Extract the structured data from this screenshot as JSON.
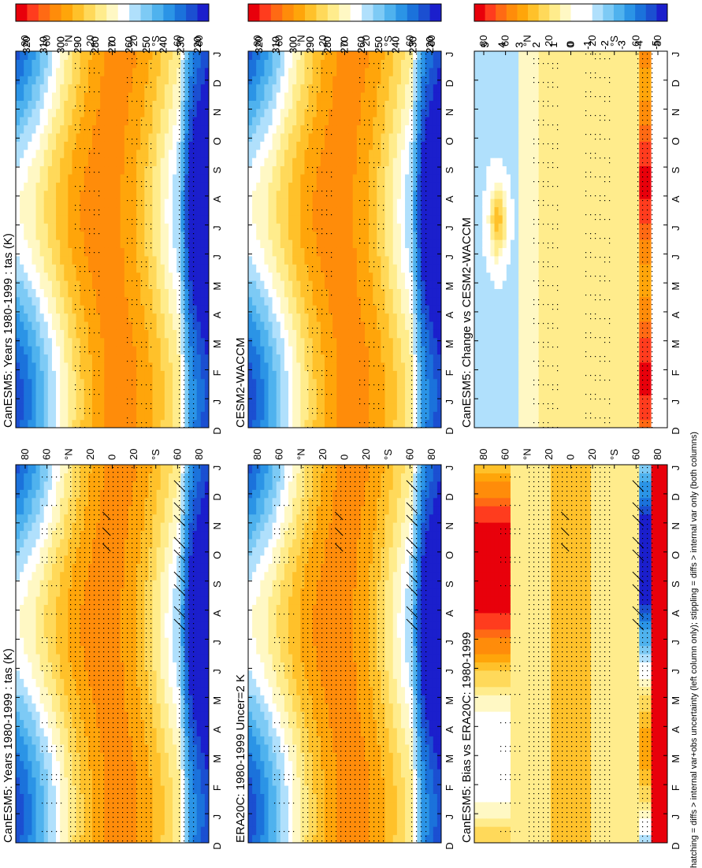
{
  "caption": "hatching = diffs > internal var+obs uncertainty (left column only); stippling = diffs > internal var only (both columns)",
  "chart_data": [
    {
      "type": "heatmap",
      "title": "CanESM5: Years 1980-1999 : tas (K)",
      "x": [
        "D",
        "J",
        "F",
        "M",
        "A",
        "M",
        "J",
        "J",
        "A",
        "S",
        "O",
        "N",
        "D",
        "J"
      ],
      "y": [
        "80",
        "60",
        "40",
        "20",
        "0",
        "20",
        "40",
        "60",
        "80"
      ],
      "ylabels": [
        "80",
        "60",
        "°N",
        "20",
        "0",
        "20",
        "°S",
        "60",
        "80"
      ],
      "colorbar": [
        "320",
        "310",
        "300",
        "290",
        "280",
        "270",
        "260",
        "250",
        "240",
        "230",
        "220"
      ],
      "field": "abs",
      "hatching": true,
      "stipple": "wide"
    },
    {
      "type": "heatmap",
      "title": "CanESM5: Years 1980-1999 : tas (K)",
      "x": [
        "D",
        "J",
        "F",
        "M",
        "A",
        "M",
        "J",
        "J",
        "A",
        "S",
        "O",
        "N",
        "D",
        "J"
      ],
      "ylabels": [
        "80",
        "60",
        "°N",
        "20",
        "0",
        "20",
        "°S",
        "60",
        "80"
      ],
      "colorbar": [
        "320",
        "310",
        "300",
        "290",
        "280",
        "270",
        "260",
        "250",
        "240",
        "230",
        "220"
      ],
      "field": "abs",
      "hatching": false,
      "stipple": "sparse"
    },
    {
      "type": "heatmap",
      "title": "ERA20C: 1980-1999 Uncer=2 K",
      "x": [
        "D",
        "J",
        "F",
        "M",
        "A",
        "M",
        "J",
        "J",
        "A",
        "S",
        "O",
        "N",
        "D",
        "J"
      ],
      "ylabels": [
        "80",
        "60",
        "°N",
        "20",
        "0",
        "20",
        "°S",
        "60",
        "80"
      ],
      "colorbar": [
        "320",
        "310",
        "300",
        "290",
        "280",
        "270",
        "260",
        "250",
        "240",
        "230",
        "220"
      ],
      "field": "abs",
      "hatching": true,
      "stipple": "wide"
    },
    {
      "type": "heatmap",
      "title": "CESM2-WACCM",
      "x": [
        "D",
        "J",
        "F",
        "M",
        "A",
        "M",
        "J",
        "J",
        "A",
        "S",
        "O",
        "N",
        "D",
        "J"
      ],
      "ylabels": [
        "80",
        "60",
        "°N",
        "20",
        "0",
        "20",
        "°S",
        "60",
        "80"
      ],
      "colorbar": [
        "320",
        "310",
        "300",
        "290",
        "280",
        "270",
        "260",
        "250",
        "240",
        "230",
        "220"
      ],
      "field": "abs",
      "hatching": false,
      "stipple": "sparse"
    },
    {
      "type": "heatmap",
      "title": "CanESM5: Bias vs ERA20C: 1980-1999",
      "x": [
        "D",
        "J",
        "F",
        "M",
        "A",
        "M",
        "J",
        "J",
        "A",
        "S",
        "O",
        "N",
        "D",
        "J"
      ],
      "ylabels": [
        "80",
        "60",
        "°N",
        "20",
        "0",
        "20",
        "°S",
        "60",
        "80"
      ],
      "colorbar": [
        "5",
        "4",
        "3",
        "2",
        "1",
        "0",
        "-1",
        "-2",
        "-3",
        "-4",
        "-5"
      ],
      "field": "bias",
      "hatching": true,
      "stipple": "wide"
    },
    {
      "type": "heatmap",
      "title": "CanESM5: Change vs CESM2-WACCM",
      "x": [
        "D",
        "J",
        "F",
        "M",
        "A",
        "M",
        "J",
        "J",
        "A",
        "S",
        "O",
        "N",
        "D",
        "J"
      ],
      "ylabels": [
        "80",
        "60",
        "°N",
        "20",
        "0",
        "20",
        "°S",
        "60",
        "80"
      ],
      "colorbar": [
        "5",
        "4",
        "3",
        "2",
        "1",
        "0",
        "-1",
        "-2",
        "-3",
        "-4",
        "-5"
      ],
      "field": "change",
      "hatching": false,
      "stipple": "sparse"
    }
  ]
}
